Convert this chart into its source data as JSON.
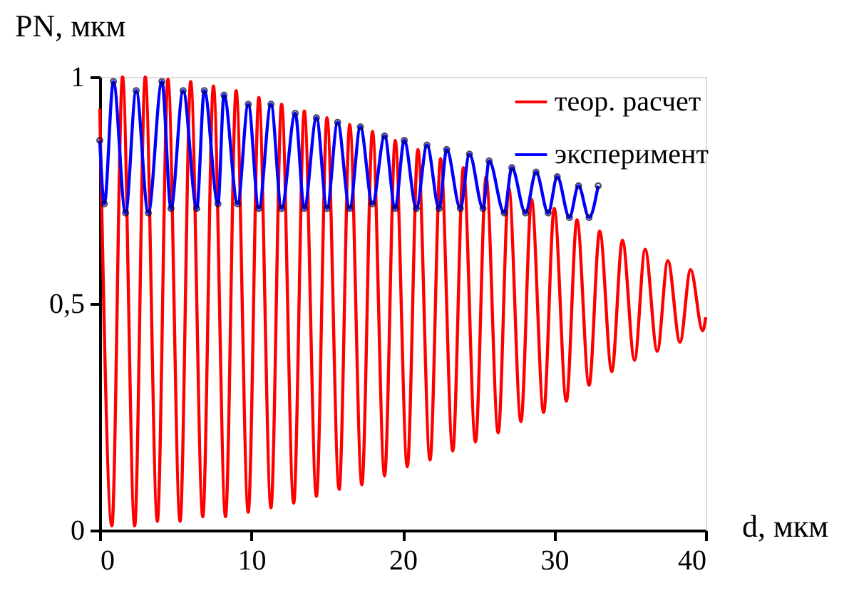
{
  "chart_data": {
    "type": "line",
    "xlabel": "d, мкм",
    "ylabel": "PN, мкм",
    "xlim": [
      0,
      40
    ],
    "xticks": [
      0,
      10,
      20,
      30,
      40
    ],
    "ylim": [
      0,
      1
    ],
    "yticks": [
      0,
      {
        "value": 0.5,
        "label": "0,5"
      },
      1
    ],
    "grid": false,
    "legend": "top right",
    "line_style": "solid",
    "series": [
      {
        "name": "теор. расчет",
        "color": "#ff0000",
        "marker": "none",
        "x": [
          0,
          0.8,
          1.5,
          2.3,
          3.0,
          3.8,
          4.5,
          5.3,
          6.0,
          6.8,
          7.5,
          8.3,
          9.0,
          9.8,
          10.5,
          11.3,
          12.0,
          12.8,
          13.5,
          14.3,
          15.0,
          15.8,
          16.5,
          17.3,
          18.0,
          18.8,
          19.5,
          20.3,
          21.0,
          21.8,
          22.5,
          23.3,
          24.0,
          24.8,
          25.5,
          26.3,
          27.0,
          27.8,
          28.5,
          29.3,
          30.0,
          30.8,
          31.5,
          32.3,
          33.0,
          33.8,
          34.5,
          35.3,
          36.0,
          36.8,
          37.5,
          38.3,
          39.0,
          39.8,
          40
        ],
        "values": [
          0.93,
          0.01,
          1.0,
          0.01,
          1.0,
          0.02,
          0.995,
          0.02,
          0.99,
          0.03,
          0.98,
          0.03,
          0.97,
          0.04,
          0.955,
          0.05,
          0.94,
          0.06,
          0.925,
          0.075,
          0.91,
          0.09,
          0.895,
          0.1,
          0.88,
          0.12,
          0.86,
          0.14,
          0.84,
          0.155,
          0.82,
          0.175,
          0.8,
          0.195,
          0.78,
          0.215,
          0.755,
          0.24,
          0.73,
          0.26,
          0.71,
          0.285,
          0.685,
          0.32,
          0.66,
          0.35,
          0.64,
          0.375,
          0.62,
          0.395,
          0.595,
          0.415,
          0.575,
          0.44,
          0.47
        ]
      },
      {
        "name": "эксперимент",
        "color": "#0000ff",
        "marker": "circle",
        "x": [
          0,
          0.3,
          0.9,
          1.7,
          2.4,
          3.2,
          4.1,
          4.7,
          5.5,
          6.4,
          6.9,
          7.8,
          8.2,
          9.1,
          9.8,
          10.5,
          11.3,
          12.0,
          12.9,
          13.5,
          14.3,
          15.0,
          15.7,
          16.5,
          17.2,
          18.0,
          18.8,
          19.5,
          20.1,
          20.9,
          21.6,
          22.4,
          22.9,
          23.8,
          24.4,
          25.3,
          25.7,
          26.7,
          27.2,
          28.1,
          28.8,
          29.6,
          30.2,
          31.0,
          31.6,
          32.3,
          32.9
        ],
        "values": [
          0.86,
          0.72,
          0.99,
          0.7,
          0.97,
          0.7,
          0.99,
          0.71,
          0.97,
          0.71,
          0.97,
          0.72,
          0.96,
          0.72,
          0.94,
          0.71,
          0.94,
          0.71,
          0.92,
          0.71,
          0.91,
          0.71,
          0.9,
          0.71,
          0.89,
          0.72,
          0.87,
          0.71,
          0.86,
          0.71,
          0.85,
          0.71,
          0.84,
          0.71,
          0.83,
          0.71,
          0.815,
          0.7,
          0.8,
          0.7,
          0.79,
          0.7,
          0.78,
          0.69,
          0.76,
          0.69,
          0.76
        ]
      }
    ]
  }
}
